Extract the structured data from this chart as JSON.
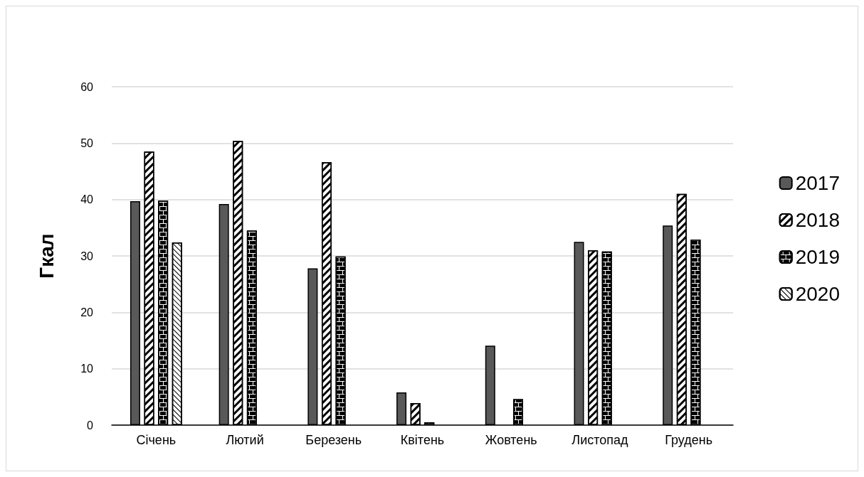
{
  "chart_data": {
    "type": "bar",
    "ylabel": "Гкал",
    "categories": [
      "Січень",
      "Лютий",
      "Березень",
      "Квітень",
      "Жовтень",
      "Листопад",
      "Грудень"
    ],
    "series": [
      {
        "name": "2017",
        "color": "#595959",
        "values": [
          39.7,
          39.2,
          27.8,
          5.8,
          14.1,
          32.5,
          35.4
        ]
      },
      {
        "name": "2018",
        "color": "#000000",
        "values": [
          48.5,
          50.4,
          46.6,
          3.9,
          null,
          31.0,
          41.0
        ]
      },
      {
        "name": "2019",
        "color": "#000000",
        "values": [
          39.8,
          34.5,
          29.9,
          0.5,
          4.6,
          30.8,
          32.9
        ]
      },
      {
        "name": "2020",
        "color": "#000000",
        "values": [
          32.4,
          null,
          null,
          null,
          null,
          null,
          null
        ]
      }
    ],
    "ylim": [
      0,
      60
    ],
    "yticks": [
      0,
      10,
      20,
      30,
      40,
      50,
      60
    ],
    "grid": "y",
    "legend": "right"
  }
}
